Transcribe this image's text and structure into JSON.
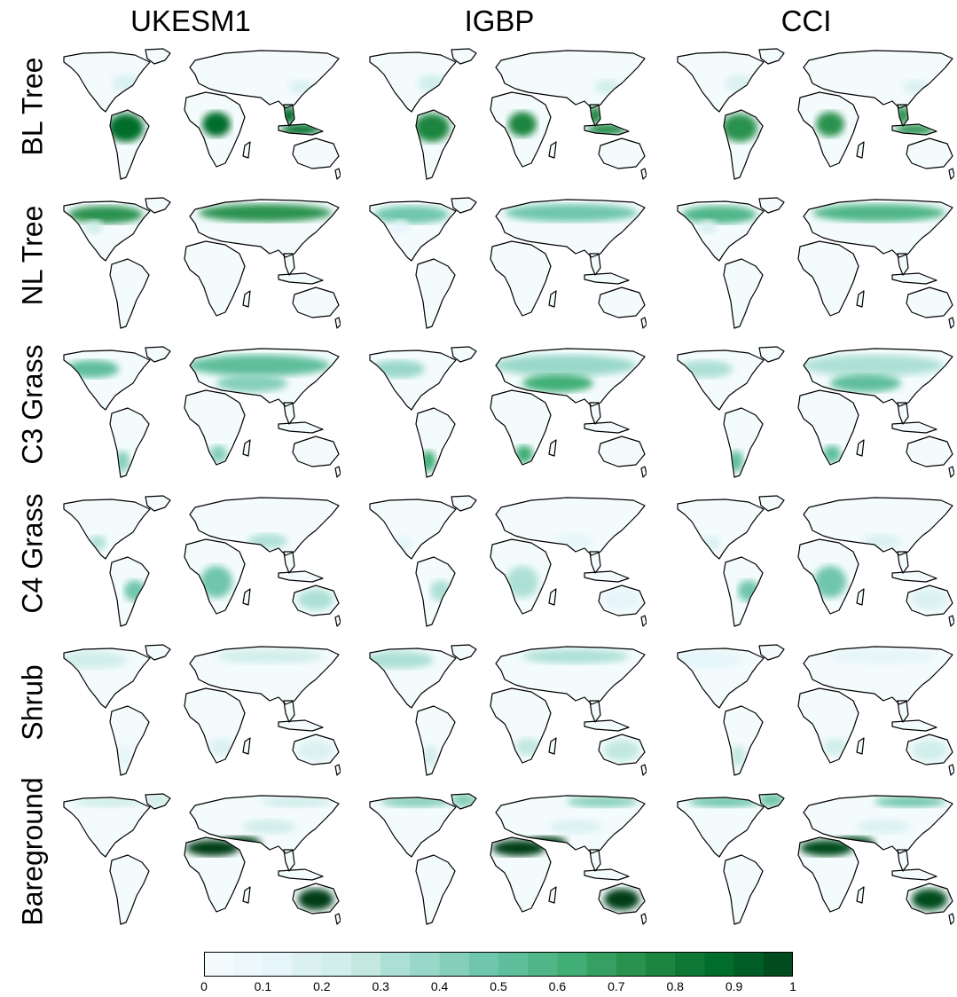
{
  "columns": [
    "UKESM1",
    "IGBP",
    "CCI"
  ],
  "rows": [
    "BL Tree",
    "NL Tree",
    "C3 Grass",
    "C4 Grass",
    "Shrub",
    "Bareground"
  ],
  "colorbar": {
    "ticks": [
      "0",
      "0.1",
      "0.2",
      "0.3",
      "0.4",
      "0.5",
      "0.6",
      "0.7",
      "0.8",
      "0.9",
      "1"
    ],
    "range": [
      0,
      1
    ],
    "n_bins": 20,
    "colors": [
      "#f7fcfd",
      "#e5f5f9",
      "#ccece6",
      "#99d8c9",
      "#66c2a4",
      "#41ae76",
      "#238b45",
      "#006d2c",
      "#00441b"
    ]
  },
  "map_fraction": {
    "BL Tree": {
      "UKESM1": {
        "tropics": 0.85,
        "boreal": 0.05,
        "midlat": 0.15
      },
      "IGBP": {
        "tropics": 0.75,
        "boreal": 0.1,
        "midlat": 0.2
      },
      "CCI": {
        "tropics": 0.7,
        "boreal": 0.05,
        "midlat": 0.15
      }
    },
    "NL Tree": {
      "UKESM1": {
        "tropics": 0.02,
        "boreal": 0.7,
        "midlat": 0.2
      },
      "IGBP": {
        "tropics": 0.02,
        "boreal": 0.45,
        "midlat": 0.1
      },
      "CCI": {
        "tropics": 0.02,
        "boreal": 0.55,
        "midlat": 0.15
      }
    },
    "C3 Grass": {
      "UKESM1": {
        "tropics": 0.1,
        "boreal": 0.5,
        "midlat": 0.4
      },
      "IGBP": {
        "tropics": 0.35,
        "boreal": 0.35,
        "midlat": 0.6
      },
      "CCI": {
        "tropics": 0.3,
        "boreal": 0.3,
        "midlat": 0.5
      }
    },
    "C4 Grass": {
      "UKESM1": {
        "tropics": 0.45,
        "boreal": 0.05,
        "midlat": 0.3
      },
      "IGBP": {
        "tropics": 0.3,
        "boreal": 0.05,
        "midlat": 0.1
      },
      "CCI": {
        "tropics": 0.45,
        "boreal": 0.05,
        "midlat": 0.15
      }
    },
    "Shrub": {
      "UKESM1": {
        "tropics": 0.1,
        "boreal": 0.2,
        "midlat": 0.15
      },
      "IGBP": {
        "tropics": 0.2,
        "boreal": 0.3,
        "midlat": 0.25
      },
      "CCI": {
        "tropics": 0.25,
        "boreal": 0.1,
        "midlat": 0.2
      }
    },
    "Bareground": {
      "UKESM1": {
        "tropics": 0.05,
        "boreal": 0.2,
        "midlat": 0.2,
        "desert": 1.0
      },
      "IGBP": {
        "tropics": 0.05,
        "boreal": 0.4,
        "midlat": 0.15,
        "desert": 1.0
      },
      "CCI": {
        "tropics": 0.05,
        "boreal": 0.45,
        "midlat": 0.15,
        "desert": 0.95
      }
    }
  }
}
